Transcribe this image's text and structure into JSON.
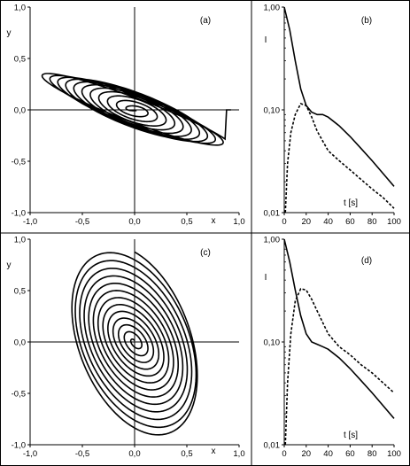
{
  "chart_data": [
    {
      "id": "a",
      "type": "line",
      "panel_label": "(a)",
      "xlabel": "x",
      "ylabel": "y",
      "xlim": [
        -1.0,
        1.0
      ],
      "ylim": [
        -1.0,
        1.0
      ],
      "xticks": [
        "-1,0",
        "-0,5",
        "0,0",
        "0,5",
        "1,0"
      ],
      "yticks": [
        "-1,0",
        "-0,5",
        "0,0",
        "0,5",
        "1,0"
      ],
      "grid": false,
      "curve": "phase trajectory spiralling from (1.0, 0.0) toward the origin",
      "series": [
        {
          "x": [
            1.0,
            0.86,
            0.55,
            0.3,
            0.2,
            0.05,
            -0.33,
            -0.75,
            -0.95,
            -0.7,
            -0.33,
            -0.05,
            0.3,
            0.27,
            0.0,
            -0.15,
            -0.1,
            0.0
          ],
          "y": [
            0.0,
            -0.01,
            0.02,
            -0.33,
            -0.3,
            -0.1,
            0.33,
            0.08,
            0.02,
            0.05,
            0.3,
            0.2,
            -0.3,
            -0.28,
            0.05,
            0.15,
            0.05,
            0.0
          ]
        }
      ]
    },
    {
      "id": "b",
      "type": "line",
      "panel_label": "(b)",
      "xlabel": "t [s]",
      "ylabel": "I",
      "xlim": [
        0,
        100
      ],
      "ylim": [
        0.01,
        1.0
      ],
      "yscale": "log",
      "xticks": [
        "0",
        "20",
        "40",
        "60",
        "80",
        "100"
      ],
      "yticks": [
        "0,01",
        "0,10",
        "1,00"
      ],
      "grid": false,
      "series": [
        {
          "style": "solid",
          "x": [
            0,
            5,
            10,
            15,
            20,
            25,
            30,
            35,
            40,
            50,
            60,
            70,
            80,
            90,
            100
          ],
          "y": [
            1.0,
            0.6,
            0.3,
            0.16,
            0.11,
            0.095,
            0.09,
            0.09,
            0.085,
            0.07,
            0.055,
            0.042,
            0.032,
            0.024,
            0.018
          ]
        },
        {
          "style": "dashed",
          "x": [
            1,
            3,
            6,
            10,
            15,
            20,
            25,
            30,
            40,
            50,
            60,
            70,
            80,
            90,
            100
          ],
          "y": [
            0.01,
            0.03,
            0.06,
            0.09,
            0.115,
            0.11,
            0.085,
            0.062,
            0.04,
            0.032,
            0.026,
            0.021,
            0.017,
            0.014,
            0.011
          ]
        }
      ]
    },
    {
      "id": "c",
      "type": "line",
      "panel_label": "(c)",
      "xlabel": "x",
      "ylabel": "y",
      "xlim": [
        -1.0,
        1.0
      ],
      "ylim": [
        -1.0,
        1.0
      ],
      "xticks": [
        "-1,0",
        "-0,5",
        "0,0",
        "0,5",
        "1,0"
      ],
      "yticks": [
        "-1,0",
        "-0,5",
        "0,0",
        "0,5",
        "1,0"
      ],
      "grid": false,
      "curve": "phase trajectory entering from (0.0, 1.0) and spiralling toward the origin",
      "series": [
        {
          "x": [
            0.0,
            -0.05,
            -0.35,
            -0.6,
            -0.55,
            0.0,
            0.55,
            0.6,
            0.35,
            0.05,
            -0.1,
            -0.4,
            -0.6,
            -0.3,
            0.0,
            0.3,
            0.6,
            0.45,
            0.0,
            -0.2,
            0.0
          ],
          "y": [
            1.0,
            0.9,
            0.45,
            0.3,
            0.2,
            -0.3,
            -0.3,
            -0.35,
            -0.45,
            -0.9,
            -0.3,
            0.25,
            0.3,
            0.55,
            0.0,
            -0.55,
            -0.35,
            -0.3,
            0.0,
            0.1,
            0.0
          ]
        }
      ]
    },
    {
      "id": "d",
      "type": "line",
      "panel_label": "(d)",
      "xlabel": "t [s]",
      "ylabel": "I",
      "xlim": [
        0,
        100
      ],
      "ylim": [
        0.01,
        1.0
      ],
      "yscale": "log",
      "xticks": [
        "0",
        "20",
        "40",
        "60",
        "80",
        "100"
      ],
      "yticks": [
        "0,01",
        "0,10",
        "1,00"
      ],
      "grid": false,
      "series": [
        {
          "style": "solid",
          "x": [
            0,
            5,
            10,
            15,
            20,
            25,
            30,
            35,
            40,
            50,
            60,
            70,
            80,
            90,
            100
          ],
          "y": [
            1.0,
            0.6,
            0.32,
            0.18,
            0.12,
            0.1,
            0.095,
            0.09,
            0.085,
            0.07,
            0.055,
            0.042,
            0.032,
            0.024,
            0.018
          ]
        },
        {
          "style": "dashed",
          "x": [
            1,
            3,
            6,
            10,
            15,
            20,
            25,
            30,
            40,
            50,
            60,
            70,
            80,
            90,
            100
          ],
          "y": [
            0.01,
            0.04,
            0.12,
            0.25,
            0.33,
            0.32,
            0.26,
            0.2,
            0.12,
            0.09,
            0.075,
            0.06,
            0.05,
            0.04,
            0.032
          ]
        }
      ]
    }
  ]
}
